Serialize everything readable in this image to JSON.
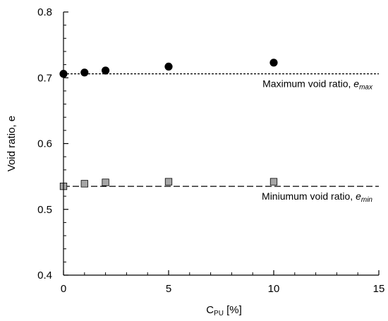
{
  "chart_data": {
    "type": "scatter",
    "xlim": [
      0,
      15
    ],
    "ylim": [
      0.4,
      0.8
    ],
    "x_ticks": [
      0,
      5,
      10,
      15
    ],
    "y_ticks": [
      0.4,
      0.5,
      0.6,
      0.7,
      0.8
    ],
    "x_tick_labels": [
      "0",
      "5",
      "10",
      "15"
    ],
    "y_tick_labels": [
      "0.4",
      "0.5",
      "0.6",
      "0.7",
      "0.8"
    ],
    "x_minor_step": 1,
    "y_minor_step": 0.02,
    "xlabel": {
      "main": "C",
      "subscript": "PU",
      "suffix": " [%]"
    },
    "ylabel": "Void ratio, e",
    "grid": false,
    "series": [
      {
        "marker": "circle",
        "color": "#000000",
        "x": [
          0,
          1,
          2,
          5,
          10
        ],
        "y": [
          0.706,
          0.708,
          0.711,
          0.717,
          0.723
        ]
      },
      {
        "marker": "square",
        "color": "#a6a6a6",
        "x": [
          0,
          1,
          2,
          5,
          10
        ],
        "y": [
          0.535,
          0.539,
          0.541,
          0.542,
          0.542
        ]
      }
    ],
    "reference_lines": [
      {
        "y": 0.706,
        "style": "dotted",
        "label_text": "Maximum void ratio, ",
        "label_var": "e",
        "label_sub": "max"
      },
      {
        "y": 0.535,
        "style": "dashed",
        "label_text": "Miniumum void ratio, ",
        "label_var": "e",
        "label_sub": "min"
      }
    ]
  }
}
